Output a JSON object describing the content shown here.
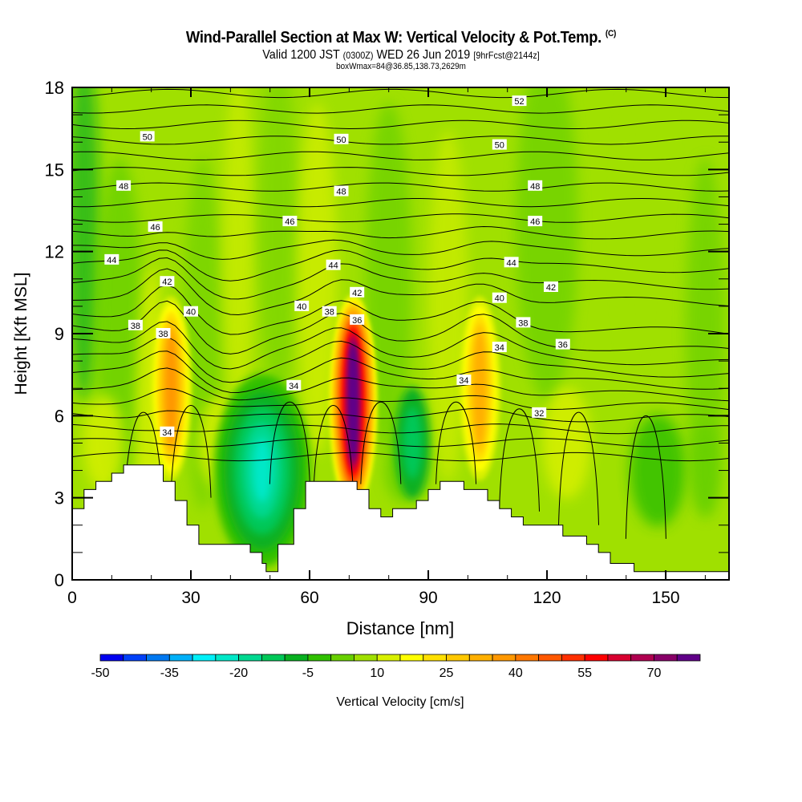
{
  "chart_data": {
    "type": "heatmap",
    "title": "Wind-Parallel Section at Max W: Vertical Velocity & Pot.Temp.",
    "title_mark": "(C)",
    "subtitle_valid": "Valid 1200 JST",
    "subtitle_utc": "(0300Z)",
    "subtitle_date": "WED 26 Jun 2019",
    "subtitle_fcst": "[9hrFcst@2144z]",
    "subtitle2": "boxWmax=84@36.85,138.73,2629m",
    "xlabel": "Distance [nm]",
    "ylabel": "Height [Kft MSL]",
    "xlim": [
      0,
      166
    ],
    "ylim": [
      0,
      18
    ],
    "xticks": [
      "0",
      "30",
      "60",
      "90",
      "120",
      "150"
    ],
    "xtick_values": [
      0,
      30,
      60,
      90,
      120,
      150
    ],
    "yticks": [
      "0",
      "3",
      "6",
      "9",
      "12",
      "15",
      "18"
    ],
    "ytick_values": [
      0,
      3,
      6,
      9,
      12,
      15,
      18
    ],
    "colorbar": {
      "label": "Vertical Velocity [cm/s]",
      "tick_labels": [
        "-50",
        "-35",
        "-20",
        "-5",
        "10",
        "25",
        "40",
        "55",
        "70"
      ],
      "tick_values": [
        -50,
        -35,
        -20,
        -5,
        10,
        25,
        40,
        55,
        70
      ],
      "levels_start": -50,
      "level_step": 5,
      "colors": [
        "#0000f0",
        "#0040f8",
        "#0078f0",
        "#00b0f8",
        "#00f0f8",
        "#00e8c8",
        "#00d890",
        "#00c858",
        "#08b020",
        "#30c000",
        "#68d000",
        "#a0e000",
        "#d8f000",
        "#ffff00",
        "#ffe000",
        "#ffc800",
        "#ffb000",
        "#ff9800",
        "#ff7800",
        "#ff5800",
        "#ff3000",
        "#ff0000",
        "#d80030",
        "#b00050",
        "#880068",
        "#600088"
      ]
    },
    "updraft_cores": [
      {
        "x_nm": 25,
        "z_kft": 7.0,
        "w_cms": 35
      },
      {
        "x_nm": 71,
        "z_kft": 6.5,
        "w_cms": 84
      },
      {
        "x_nm": 103,
        "z_kft": 7.0,
        "w_cms": 30
      }
    ],
    "downdraft_cores": [
      {
        "x_nm": 48,
        "z_kft": 4.0,
        "w_cms": -25
      }
    ],
    "contour_labels": [
      {
        "text": "52",
        "x_nm": 113,
        "z_kft": 17.5
      },
      {
        "text": "50",
        "x_nm": 19,
        "z_kft": 16.2
      },
      {
        "text": "50",
        "x_nm": 68,
        "z_kft": 16.1
      },
      {
        "text": "50",
        "x_nm": 108,
        "z_kft": 15.9
      },
      {
        "text": "48",
        "x_nm": 13,
        "z_kft": 14.4
      },
      {
        "text": "48",
        "x_nm": 68,
        "z_kft": 14.2
      },
      {
        "text": "48",
        "x_nm": 117,
        "z_kft": 14.4
      },
      {
        "text": "46",
        "x_nm": 21,
        "z_kft": 12.9
      },
      {
        "text": "46",
        "x_nm": 55,
        "z_kft": 13.1
      },
      {
        "text": "46",
        "x_nm": 117,
        "z_kft": 13.1
      },
      {
        "text": "44",
        "x_nm": 10,
        "z_kft": 11.7
      },
      {
        "text": "44",
        "x_nm": 66,
        "z_kft": 11.5
      },
      {
        "text": "44",
        "x_nm": 111,
        "z_kft": 11.6
      },
      {
        "text": "42",
        "x_nm": 24,
        "z_kft": 10.9
      },
      {
        "text": "42",
        "x_nm": 72,
        "z_kft": 10.5
      },
      {
        "text": "42",
        "x_nm": 121,
        "z_kft": 10.7
      },
      {
        "text": "40",
        "x_nm": 30,
        "z_kft": 9.8
      },
      {
        "text": "40",
        "x_nm": 58,
        "z_kft": 10.0
      },
      {
        "text": "40",
        "x_nm": 108,
        "z_kft": 10.3
      },
      {
        "text": "38",
        "x_nm": 16,
        "z_kft": 9.3
      },
      {
        "text": "38",
        "x_nm": 23,
        "z_kft": 9.0
      },
      {
        "text": "38",
        "x_nm": 65,
        "z_kft": 9.8
      },
      {
        "text": "38",
        "x_nm": 114,
        "z_kft": 9.4
      },
      {
        "text": "36",
        "x_nm": 72,
        "z_kft": 9.5
      },
      {
        "text": "36",
        "x_nm": 124,
        "z_kft": 8.6
      },
      {
        "text": "34",
        "x_nm": 56,
        "z_kft": 7.1
      },
      {
        "text": "34",
        "x_nm": 24,
        "z_kft": 5.4
      },
      {
        "text": "34",
        "x_nm": 99,
        "z_kft": 7.3
      },
      {
        "text": "34",
        "x_nm": 108,
        "z_kft": 8.5
      },
      {
        "text": "32",
        "x_nm": 118,
        "z_kft": 6.1
      }
    ],
    "terrain_kft": [
      {
        "x_nm": 0,
        "z": 2.6
      },
      {
        "x_nm": 3,
        "z": 3.3
      },
      {
        "x_nm": 6,
        "z": 3.6
      },
      {
        "x_nm": 10,
        "z": 3.9
      },
      {
        "x_nm": 13,
        "z": 4.2
      },
      {
        "x_nm": 23,
        "z": 3.6
      },
      {
        "x_nm": 26,
        "z": 2.9
      },
      {
        "x_nm": 29,
        "z": 2.0
      },
      {
        "x_nm": 32,
        "z": 1.3
      },
      {
        "x_nm": 45,
        "z": 1.0
      },
      {
        "x_nm": 48,
        "z": 0.6
      },
      {
        "x_nm": 49,
        "z": 0.3
      },
      {
        "x_nm": 52,
        "z": 1.3
      },
      {
        "x_nm": 56,
        "z": 2.6
      },
      {
        "x_nm": 59,
        "z": 3.6
      },
      {
        "x_nm": 72,
        "z": 3.3
      },
      {
        "x_nm": 75,
        "z": 2.6
      },
      {
        "x_nm": 78,
        "z": 2.3
      },
      {
        "x_nm": 81,
        "z": 2.6
      },
      {
        "x_nm": 87,
        "z": 2.9
      },
      {
        "x_nm": 90,
        "z": 3.3
      },
      {
        "x_nm": 93,
        "z": 3.6
      },
      {
        "x_nm": 99,
        "z": 3.3
      },
      {
        "x_nm": 105,
        "z": 2.9
      },
      {
        "x_nm": 108,
        "z": 2.6
      },
      {
        "x_nm": 111,
        "z": 2.3
      },
      {
        "x_nm": 114,
        "z": 2.0
      },
      {
        "x_nm": 124,
        "z": 1.6
      },
      {
        "x_nm": 130,
        "z": 1.3
      },
      {
        "x_nm": 133,
        "z": 1.0
      },
      {
        "x_nm": 136,
        "z": 0.6
      },
      {
        "x_nm": 142,
        "z": 0.3
      },
      {
        "x_nm": 166,
        "z": 0.3
      }
    ]
  }
}
